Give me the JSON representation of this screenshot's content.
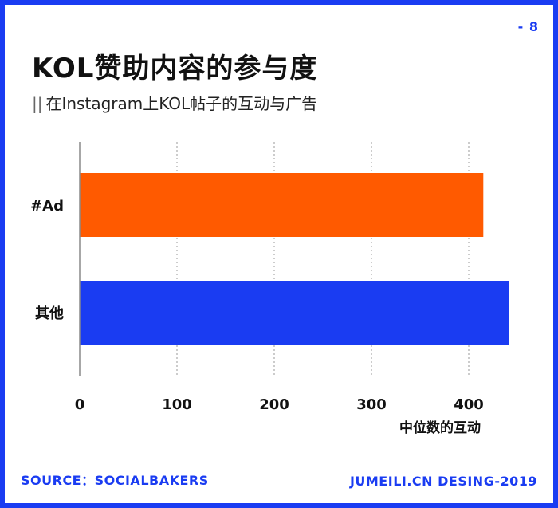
{
  "page_number": "- 8",
  "title": "KOL赞助内容的参与度",
  "subtitle_marker": "||",
  "subtitle": "在Instagram上KOL帖子的互动与广告",
  "footer": {
    "source": "SOURCE：SOCIALBAKERS",
    "credit": "JUMEILI.CN DESING-2019"
  },
  "colors": {
    "frame": "#1a3cf2",
    "ad_bar": "#ff5a00",
    "other_bar": "#1a3cf2",
    "grid": "#9a9a9a"
  },
  "chart_data": {
    "type": "bar",
    "orientation": "horizontal",
    "categories": [
      "#Ad",
      "其他"
    ],
    "values": [
      415,
      441
    ],
    "bar_colors": [
      "#ff5a00",
      "#1a3cf2"
    ],
    "xlabel": "中位数的互动",
    "ylabel": "",
    "xlim": [
      0,
      450
    ],
    "xticks": [
      0,
      100,
      200,
      300,
      400
    ],
    "grid": "vertical dashed"
  }
}
